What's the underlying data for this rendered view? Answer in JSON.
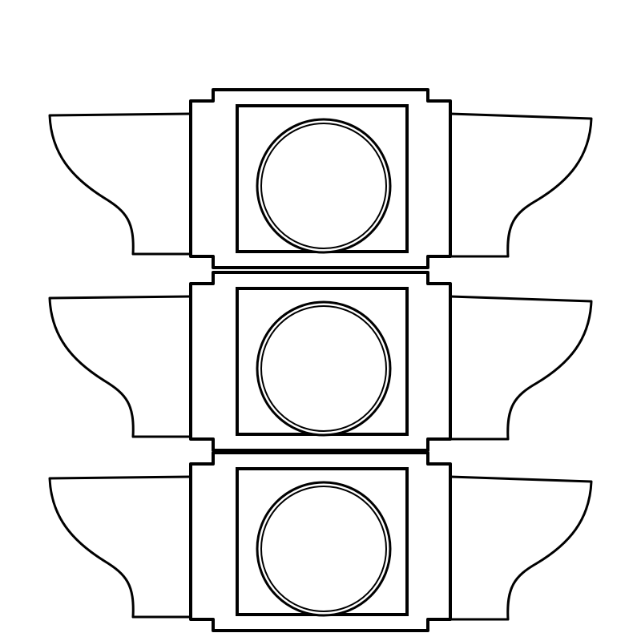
{
  "drawing": {
    "subject": "traffic-light",
    "line_color": "#000000",
    "fill_color": "#ffffff",
    "lamp_count": 3
  }
}
